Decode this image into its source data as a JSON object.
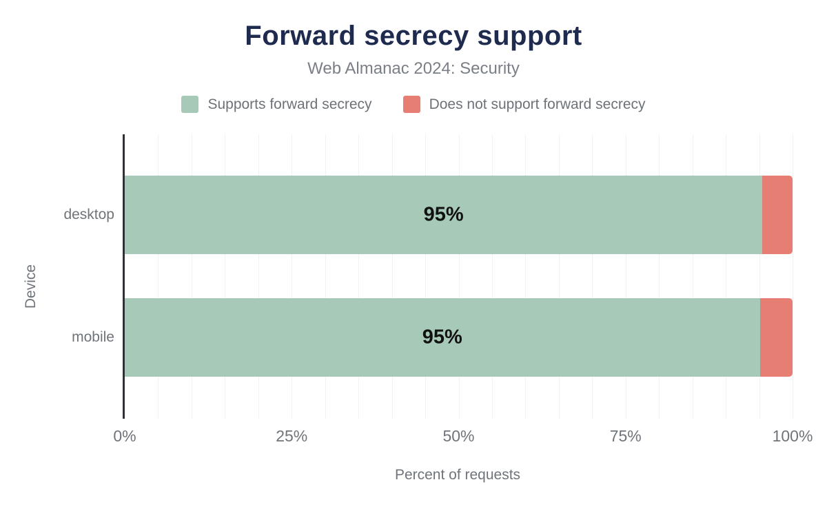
{
  "header": {
    "title": "Forward secrecy support",
    "subtitle": "Web Almanac 2024: Security"
  },
  "legend": {
    "items": [
      {
        "label": "Supports forward secrecy",
        "color": "#a6cab7"
      },
      {
        "label": "Does not support forward secrecy",
        "color": "#e67e74"
      }
    ]
  },
  "chart_data": {
    "type": "bar",
    "orientation": "horizontal",
    "stacked": true,
    "title": "Forward secrecy support",
    "subtitle": "Web Almanac 2024: Security",
    "categories": [
      "desktop",
      "mobile"
    ],
    "series": [
      {
        "name": "Supports forward secrecy",
        "color": "#a6cab7",
        "values": [
          95.5,
          95.1
        ],
        "data_labels": [
          "95%",
          "95%"
        ]
      },
      {
        "name": "Does not support forward secrecy",
        "color": "#e67e74",
        "values": [
          4.5,
          4.9
        ],
        "data_labels": [
          "",
          ""
        ]
      }
    ],
    "xlabel": "Percent of requests",
    "ylabel": "Device",
    "xlim": [
      0,
      100
    ],
    "xticks": [
      {
        "value": 0,
        "label": "0%"
      },
      {
        "value": 25,
        "label": "25%"
      },
      {
        "value": 50,
        "label": "50%"
      },
      {
        "value": 75,
        "label": "75%"
      },
      {
        "value": 100,
        "label": "100%"
      }
    ],
    "grid": {
      "show": true,
      "interval": 5
    },
    "legend_position": "top"
  },
  "colors": {
    "title": "#1f2b4e",
    "subtitle": "#7a7f87",
    "axis_text": "#6f747b",
    "grid_line": "#f2f2f3",
    "axis_line": "#303136",
    "bar_label": "#111111",
    "background": "#ffffff"
  }
}
